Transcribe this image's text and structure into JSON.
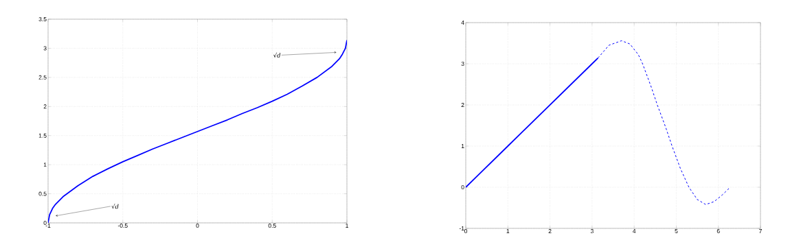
{
  "chart_data": [
    {
      "type": "line",
      "xlim": [
        -1,
        1
      ],
      "ylim": [
        0,
        3.5
      ],
      "xticks": [
        -1,
        -0.5,
        0,
        0.5,
        1
      ],
      "yticks": [
        0,
        0.5,
        1,
        1.5,
        2,
        2.5,
        3,
        3.5
      ],
      "grid": true,
      "line_style": "solid",
      "series": [
        {
          "color": "#0000ff",
          "x": [
            -1,
            -0.99,
            -0.97,
            -0.95,
            -0.9,
            -0.8,
            -0.7,
            -0.6,
            -0.5,
            -0.4,
            -0.3,
            -0.2,
            -0.1,
            0,
            0.1,
            0.2,
            0.3,
            0.4,
            0.5,
            0.6,
            0.7,
            0.8,
            0.9,
            0.95,
            0.97,
            0.99,
            1
          ],
          "values": [
            0,
            0.14,
            0.25,
            0.32,
            0.45,
            0.64,
            0.8,
            0.93,
            1.05,
            1.16,
            1.27,
            1.37,
            1.47,
            1.57,
            1.67,
            1.77,
            1.88,
            1.98,
            2.09,
            2.21,
            2.35,
            2.5,
            2.69,
            2.82,
            2.9,
            3.0,
            3.14
          ]
        }
      ],
      "annotations": [
        {
          "text": "√d",
          "x": -0.95,
          "y": 0.12
        },
        {
          "text": "√d",
          "x": 0.93,
          "y": 2.93
        }
      ]
    },
    {
      "type": "line",
      "xlim": [
        0,
        7
      ],
      "ylim": [
        -1,
        4
      ],
      "xticks": [
        0,
        1,
        2,
        3,
        4,
        5,
        6,
        7
      ],
      "yticks": [
        -1,
        0,
        1,
        2,
        3,
        4
      ],
      "grid": true,
      "series": [
        {
          "color": "#0000ff",
          "line_style": "solid",
          "x": [
            0,
            1,
            2,
            3,
            3.14
          ],
          "values": [
            0,
            1,
            2,
            3,
            3.14
          ]
        },
        {
          "color": "#0000ff",
          "line_style": "dashed",
          "x": [
            3.14,
            3.4,
            3.7,
            3.9,
            4.1,
            4.2,
            4.4,
            4.55,
            4.75,
            4.9,
            5.1,
            5.3,
            5.5,
            5.7,
            5.9,
            6.1,
            6.28
          ],
          "values": [
            3.14,
            3.45,
            3.56,
            3.48,
            3.22,
            3.0,
            2.45,
            2.0,
            1.45,
            1.0,
            0.45,
            0.0,
            -0.3,
            -0.42,
            -0.35,
            -0.18,
            0
          ]
        }
      ]
    }
  ]
}
